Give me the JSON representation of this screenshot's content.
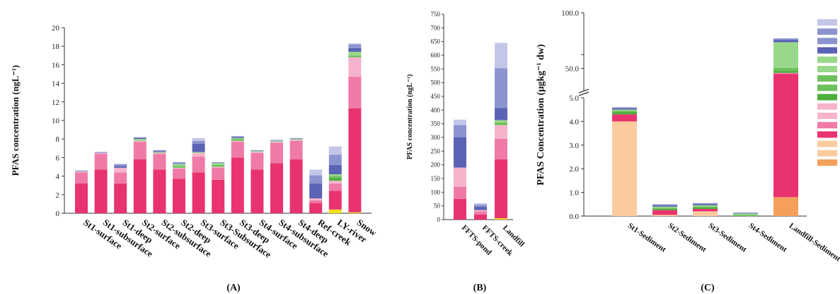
{
  "colors": {
    "c1": "#f2e018",
    "c2": "#f4a05a",
    "c3": "#fbcba0",
    "c4": "#e8336e",
    "c5": "#f07aa7",
    "c6": "#f6b3cc",
    "c7": "#4dae3c",
    "c8": "#6cc05a",
    "c9": "#98d88a",
    "c10": "#5a63b4",
    "c11": "#8c94d0",
    "c12": "#c3c6e8"
  },
  "chart_data": [
    {
      "type": "bar",
      "stacked": true,
      "panel_label": "(A)",
      "title": "",
      "xlabel": "",
      "ylabel": "PFAS concentration (ngL⁻¹)",
      "ylim": [
        0,
        20
      ],
      "yticks": [
        "0",
        "2",
        "4",
        "6",
        "8",
        "10",
        "12",
        "14",
        "16",
        "18",
        "20"
      ],
      "grid": false,
      "categories": [
        "St1-surface",
        "St1-subsurface",
        "St1-deep",
        "St2-surface",
        "St2-subsurface",
        "St2-deep",
        "St3-surface",
        "St3-Subsurface",
        "St3-deep",
        "St4-surface",
        "St4-subsurface",
        "St4-deep",
        "Ref-creek",
        "LY-river",
        "Snow"
      ],
      "stacks": [
        [
          [
            "c4",
            3.2
          ],
          [
            "c5",
            1.2
          ],
          [
            "c6",
            0.1
          ],
          [
            "c11",
            0.1
          ]
        ],
        [
          [
            "c4",
            4.7
          ],
          [
            "c5",
            1.7
          ],
          [
            "c6",
            0.1
          ],
          [
            "c11",
            0.1
          ]
        ],
        [
          [
            "c4",
            3.2
          ],
          [
            "c5",
            1.2
          ],
          [
            "c6",
            0.5
          ],
          [
            "c10",
            0.2
          ],
          [
            "c11",
            0.2
          ]
        ],
        [
          [
            "c4",
            5.8
          ],
          [
            "c5",
            1.9
          ],
          [
            "c6",
            0.1
          ],
          [
            "c9",
            0.2
          ],
          [
            "c10",
            0.1
          ],
          [
            "c11",
            0.1
          ]
        ],
        [
          [
            "c4",
            4.7
          ],
          [
            "c5",
            1.7
          ],
          [
            "c6",
            0.1
          ],
          [
            "c9",
            0.1
          ],
          [
            "c10",
            0.1
          ],
          [
            "c11",
            0.1
          ]
        ],
        [
          [
            "c4",
            3.7
          ],
          [
            "c5",
            1.1
          ],
          [
            "c6",
            0.1
          ],
          [
            "c8",
            0.2
          ],
          [
            "c9",
            0.2
          ],
          [
            "c11",
            0.2
          ]
        ],
        [
          [
            "c4",
            4.4
          ],
          [
            "c5",
            1.7
          ],
          [
            "c6",
            0.4
          ],
          [
            "c9",
            0.1
          ],
          [
            "c10",
            0.9
          ],
          [
            "c11",
            0.3
          ],
          [
            "c12",
            0.3
          ]
        ],
        [
          [
            "c4",
            3.6
          ],
          [
            "c5",
            1.3
          ],
          [
            "c6",
            0.1
          ],
          [
            "c8",
            0.2
          ],
          [
            "c9",
            0.2
          ],
          [
            "c11",
            0.1
          ]
        ],
        [
          [
            "c4",
            6.0
          ],
          [
            "c5",
            1.7
          ],
          [
            "c6",
            0.1
          ],
          [
            "c8",
            0.2
          ],
          [
            "c9",
            0.1
          ],
          [
            "c10",
            0.1
          ],
          [
            "c11",
            0.1
          ]
        ],
        [
          [
            "c4",
            4.7
          ],
          [
            "c5",
            1.8
          ],
          [
            "c6",
            0.1
          ],
          [
            "c9",
            0.1
          ],
          [
            "c11",
            0.1
          ]
        ],
        [
          [
            "c4",
            5.4
          ],
          [
            "c5",
            2.2
          ],
          [
            "c6",
            0.1
          ],
          [
            "c9",
            0.1
          ],
          [
            "c11",
            0.1
          ]
        ],
        [
          [
            "c4",
            5.8
          ],
          [
            "c5",
            2.0
          ],
          [
            "c6",
            0.1
          ],
          [
            "c9",
            0.1
          ],
          [
            "c11",
            0.1
          ]
        ],
        [
          [
            "c4",
            1.1
          ],
          [
            "c5",
            0.3
          ],
          [
            "c6",
            0.2
          ],
          [
            "c10",
            1.6
          ],
          [
            "c11",
            0.9
          ],
          [
            "c12",
            0.6
          ]
        ],
        [
          [
            "c1",
            0.4
          ],
          [
            "c4",
            2.0
          ],
          [
            "c5",
            0.8
          ],
          [
            "c6",
            0.3
          ],
          [
            "c7",
            0.3
          ],
          [
            "c8",
            0.2
          ],
          [
            "c9",
            0.2
          ],
          [
            "c10",
            1.0
          ],
          [
            "c11",
            1.1
          ],
          [
            "c12",
            0.9
          ]
        ],
        [
          [
            "c1",
            0.1
          ],
          [
            "c4",
            11.2
          ],
          [
            "c5",
            3.4
          ],
          [
            "c6",
            2.1
          ],
          [
            "c8",
            0.2
          ],
          [
            "c9",
            0.4
          ],
          [
            "c10",
            0.4
          ],
          [
            "c11",
            0.4
          ],
          [
            "c12",
            0.1
          ]
        ]
      ]
    },
    {
      "type": "bar",
      "stacked": true,
      "panel_label": "(B)",
      "title": "",
      "xlabel": "",
      "ylabel": "PFAS concentration (ngL⁻¹)",
      "ylim": [
        0,
        750
      ],
      "yticks": [
        "0",
        "50",
        "100",
        "150",
        "200",
        "250",
        "300",
        "350",
        "400",
        "450",
        "500",
        "550",
        "600",
        "650",
        "700",
        "750"
      ],
      "grid": false,
      "categories": [
        "FFTS-pond",
        "FFTS-creek",
        "Landfill"
      ],
      "stacks": [
        [
          [
            "c4",
            75
          ],
          [
            "c5",
            45
          ],
          [
            "c6",
            70
          ],
          [
            "c10",
            110
          ],
          [
            "c11",
            45
          ],
          [
            "c12",
            20
          ]
        ],
        [
          [
            "c4",
            18
          ],
          [
            "c5",
            12
          ],
          [
            "c6",
            5
          ],
          [
            "c10",
            12
          ],
          [
            "c11",
            8
          ],
          [
            "c12",
            5
          ]
        ],
        [
          [
            "c1",
            5
          ],
          [
            "c4",
            215
          ],
          [
            "c5",
            75
          ],
          [
            "c6",
            50
          ],
          [
            "c8",
            10
          ],
          [
            "c9",
            8
          ],
          [
            "c10",
            45
          ],
          [
            "c11",
            145
          ],
          [
            "c12",
            92
          ]
        ]
      ]
    },
    {
      "type": "bar",
      "stacked": true,
      "panel_label": "(C)",
      "title": "",
      "xlabel": "",
      "ylabel": "PFAS Concentration (µgkg⁻¹ dw)",
      "y_axis_break": [
        5.0,
        30.0
      ],
      "yticks": [
        "0.0",
        "1.0",
        "2.0",
        "3.0",
        "4.0",
        "5.0",
        "50.0",
        "100.0"
      ],
      "grid": false,
      "legend_position": "right",
      "categories": [
        "St1-Sediment",
        "St2-Sediment",
        "St3-Sediment",
        "St4-Sediment",
        "Landfill-Sediment"
      ],
      "stacks": [
        [
          [
            "c3",
            4.0
          ],
          [
            "c4",
            0.3
          ],
          [
            "c7",
            0.1
          ],
          [
            "c8",
            0.05
          ],
          [
            "c9",
            0.05
          ],
          [
            "c10",
            0.05
          ],
          [
            "c11",
            0.05
          ]
        ],
        [
          [
            "c3",
            0.05
          ],
          [
            "c4",
            0.2
          ],
          [
            "c7",
            0.05
          ],
          [
            "c8",
            0.05
          ],
          [
            "c9",
            0.05
          ],
          [
            "c10",
            0.05
          ],
          [
            "c11",
            0.05
          ]
        ],
        [
          [
            "c3",
            0.2
          ],
          [
            "c4",
            0.1
          ],
          [
            "c7",
            0.06
          ],
          [
            "c8",
            0.05
          ],
          [
            "c9",
            0.05
          ],
          [
            "c10",
            0.05
          ],
          [
            "c11",
            0.04
          ]
        ],
        [
          [
            "c8",
            0.05
          ],
          [
            "c9",
            0.05
          ],
          [
            "c11",
            0.05
          ]
        ],
        [
          [
            "c2",
            0.8
          ],
          [
            "c4",
            44.2
          ],
          [
            "c5",
            1.0
          ],
          [
            "c7",
            1.5
          ],
          [
            "c8",
            3.0
          ],
          [
            "c9",
            23.0
          ],
          [
            "c10",
            2.0
          ],
          [
            "c11",
            1.5
          ]
        ]
      ]
    }
  ],
  "legend": {
    "swatches": [
      "c12",
      "c11",
      "c11",
      "c10",
      "c9",
      "c9",
      "c8",
      "c8",
      "c7",
      "c6",
      "c6",
      "c5",
      "c4",
      "c3",
      "c3",
      "c2"
    ]
  }
}
